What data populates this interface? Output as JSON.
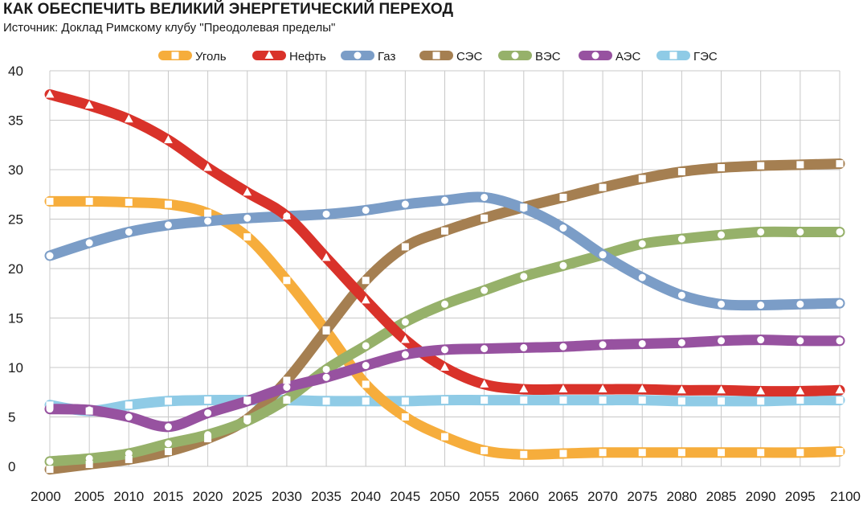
{
  "chart_data": {
    "type": "line",
    "title": "КАК ОБЕСПЕЧИТЬ ВЕЛИКИЙ ЭНЕРГЕТИЧЕСКИЙ ПЕРЕХОД",
    "subtitle": "Источник: Доклад Римскому клубу \"Преодолевая пределы\"",
    "xlabel": "",
    "ylabel": "",
    "x": [
      2000,
      2005,
      2010,
      2015,
      2020,
      2025,
      2030,
      2035,
      2040,
      2045,
      2050,
      2055,
      2060,
      2065,
      2070,
      2075,
      2080,
      2085,
      2090,
      2095,
      2100
    ],
    "xlim": [
      2000,
      2100
    ],
    "ylim": [
      0,
      40
    ],
    "yticks": [
      0,
      5,
      10,
      15,
      20,
      25,
      30,
      35,
      40
    ],
    "grid": true,
    "legend_position": "top",
    "series": [
      {
        "name": "Уголь",
        "color": "#f6ad3c",
        "marker": "square",
        "values": [
          26.8,
          26.8,
          26.7,
          26.5,
          25.6,
          23.2,
          18.8,
          13.7,
          8.3,
          5.0,
          3.0,
          1.6,
          1.2,
          1.3,
          1.4,
          1.4,
          1.4,
          1.4,
          1.4,
          1.4,
          1.5
        ]
      },
      {
        "name": "Нефть",
        "color": "#d9322a",
        "marker": "triangle",
        "values": [
          37.6,
          36.5,
          35.1,
          33.0,
          30.2,
          27.7,
          25.3,
          21.1,
          16.8,
          12.8,
          10.0,
          8.3,
          7.8,
          7.8,
          7.8,
          7.8,
          7.7,
          7.7,
          7.6,
          7.6,
          7.7
        ]
      },
      {
        "name": "Газ",
        "color": "#7b9dc7",
        "marker": "circle",
        "values": [
          21.3,
          22.6,
          23.7,
          24.4,
          24.8,
          25.1,
          25.3,
          25.5,
          25.9,
          26.5,
          26.9,
          27.2,
          26.1,
          24.1,
          21.4,
          19.1,
          17.3,
          16.4,
          16.3,
          16.4,
          16.5
        ]
      },
      {
        "name": "СЭС",
        "color": "#a57f51",
        "marker": "square",
        "values": [
          -0.3,
          0.2,
          0.7,
          1.5,
          2.8,
          4.8,
          8.7,
          13.8,
          18.8,
          22.2,
          23.8,
          25.1,
          26.2,
          27.2,
          28.2,
          29.1,
          29.8,
          30.2,
          30.4,
          30.5,
          30.6
        ]
      },
      {
        "name": "ВЭС",
        "color": "#96b16a",
        "marker": "circle",
        "values": [
          0.5,
          0.8,
          1.3,
          2.3,
          3.2,
          4.6,
          6.8,
          9.8,
          12.2,
          14.6,
          16.4,
          17.8,
          19.2,
          20.3,
          21.4,
          22.5,
          23.0,
          23.4,
          23.7,
          23.7,
          23.7
        ]
      },
      {
        "name": "АЭС",
        "color": "#9752a0",
        "marker": "circle",
        "values": [
          5.8,
          5.7,
          5.0,
          4.0,
          5.4,
          6.6,
          8.0,
          9.0,
          10.2,
          11.3,
          11.8,
          11.9,
          12.0,
          12.1,
          12.3,
          12.4,
          12.5,
          12.7,
          12.8,
          12.7,
          12.7
        ]
      },
      {
        "name": "ГЭС",
        "color": "#8fcbe6",
        "marker": "square",
        "values": [
          6.2,
          5.6,
          6.2,
          6.6,
          6.7,
          6.7,
          6.7,
          6.6,
          6.6,
          6.6,
          6.7,
          6.7,
          6.7,
          6.7,
          6.7,
          6.7,
          6.6,
          6.6,
          6.6,
          6.7,
          6.7
        ]
      }
    ]
  }
}
